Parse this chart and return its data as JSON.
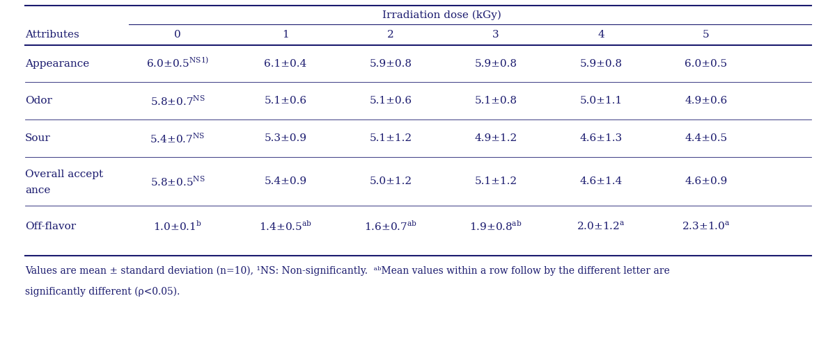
{
  "col_header_top": "Irradiation dose (kGy)",
  "col_header_left": "Attributes",
  "dose_labels": [
    "0",
    "1",
    "2",
    "3",
    "4",
    "5"
  ],
  "rows": [
    {
      "attribute": "Appearance",
      "attribute_lines": [
        "Appearance"
      ],
      "value_texts": [
        {
          "main": "6.0±0.5",
          "super": "NS1)"
        },
        {
          "main": "6.1±0.4",
          "super": ""
        },
        {
          "main": "5.9±0.8",
          "super": ""
        },
        {
          "main": "5.9±0.8",
          "super": ""
        },
        {
          "main": "5.9±0.8",
          "super": ""
        },
        {
          "main": "6.0±0.5",
          "super": ""
        }
      ]
    },
    {
      "attribute": "Odor",
      "attribute_lines": [
        "Odor"
      ],
      "value_texts": [
        {
          "main": "5.8±0.7",
          "super": "NS"
        },
        {
          "main": "5.1±0.6",
          "super": ""
        },
        {
          "main": "5.1±0.6",
          "super": ""
        },
        {
          "main": "5.1±0.8",
          "super": ""
        },
        {
          "main": "5.0±1.1",
          "super": ""
        },
        {
          "main": "4.9±0.6",
          "super": ""
        }
      ]
    },
    {
      "attribute": "Sour",
      "attribute_lines": [
        "Sour"
      ],
      "value_texts": [
        {
          "main": "5.4±0.7",
          "super": "NS"
        },
        {
          "main": "5.3±0.9",
          "super": ""
        },
        {
          "main": "5.1±1.2",
          "super": ""
        },
        {
          "main": "4.9±1.2",
          "super": ""
        },
        {
          "main": "4.6±1.3",
          "super": ""
        },
        {
          "main": "4.4±0.5",
          "super": ""
        }
      ]
    },
    {
      "attribute": "Overall accept\nance",
      "attribute_lines": [
        "Overall accept",
        "ance"
      ],
      "value_texts": [
        {
          "main": "5.8±0.5",
          "super": "NS"
        },
        {
          "main": "5.4±0.9",
          "super": ""
        },
        {
          "main": "5.0±1.2",
          "super": ""
        },
        {
          "main": "5.1±1.2",
          "super": ""
        },
        {
          "main": "4.6±1.4",
          "super": ""
        },
        {
          "main": "4.6±0.9",
          "super": ""
        }
      ]
    },
    {
      "attribute": "Off-flavor",
      "attribute_lines": [
        "Off-flavor"
      ],
      "value_texts": [
        {
          "main": "1.0±0.1",
          "super": "b"
        },
        {
          "main": "1.4±0.5",
          "super": "ab"
        },
        {
          "main": "1.6±0.7",
          "super": "ab"
        },
        {
          "main": "1.9±0.8",
          "super": "ab"
        },
        {
          "main": "2.0±1.2",
          "super": "a"
        },
        {
          "main": "2.3±1.0",
          "super": "a"
        }
      ]
    }
  ],
  "footnote_line1": "Values are mean ± standard deviation (n=10), ¹NS: Non-significantly.  ᵃᵇMean values within a row follow by the different letter are",
  "footnote_line2": "significantly different (ρ<0.05).",
  "bg_color": "#ffffff",
  "text_color": "#1a1a6e",
  "line_color": "#1a1a6e",
  "font_size": 11,
  "super_font_size": 7.5,
  "footnote_font_size": 10
}
